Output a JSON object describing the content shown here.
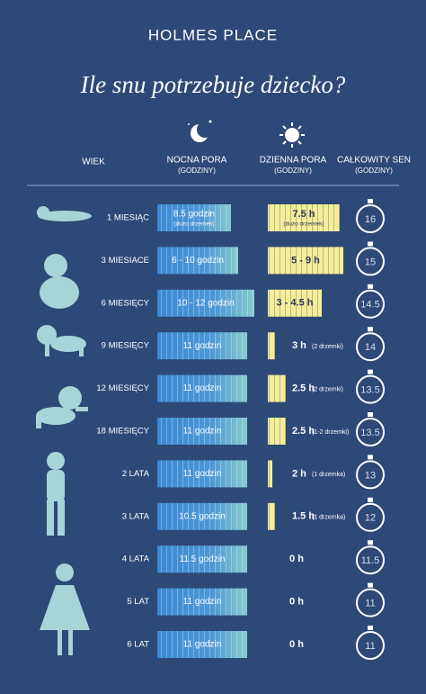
{
  "header": {
    "brand": "HOLMES PLACE",
    "title": "Ile snu potrzebuje dziecko?"
  },
  "columns": {
    "age": "WIEK",
    "night": "NOCNA PORA",
    "night_unit": "(GODZINY)",
    "day": "DZIENNA PORA",
    "day_unit": "(GODZINY)",
    "total": "CAŁKOWITY SEN",
    "total_unit": "(GODZINY)"
  },
  "rows": [
    {
      "age": "1 MIESIĄC",
      "night": "8.5 godzin",
      "night_note": "(dużo drzemek)",
      "day": "7.5 h",
      "day_note": "(dużo drzemek)",
      "total": "16"
    },
    {
      "age": "3 MIESIACE",
      "night": "6 - 10 godzin",
      "day": "5 - 9 h",
      "total": "15"
    },
    {
      "age": "6 MIESIĘCY",
      "night": "10 - 12 godzin",
      "day": "3 - 4.5 h",
      "total": "14.5"
    },
    {
      "age": "9 MIESIĘCY",
      "night": "11 godzin",
      "day": "3 h",
      "day_note": "(2 drzemki)",
      "total": "14"
    },
    {
      "age": "12 MIESIĘCY",
      "night": "11 godzin",
      "day": "2.5 h",
      "day_note": "(2 drzemki)",
      "total": "13.5"
    },
    {
      "age": "18 MIESIĘCY",
      "night": "11 godzin",
      "day": "2.5 h",
      "day_note": "(1-2 drzemki)",
      "total": "13.5"
    },
    {
      "age": "2 LATA",
      "night": "11 godzin",
      "day": "2 h",
      "day_note": "(1 drzemka)",
      "total": "13"
    },
    {
      "age": "3 LATA",
      "night": "10.5 godzin",
      "day": "1.5 h",
      "day_note": "(1 drzemka)",
      "total": "12"
    },
    {
      "age": "4 LATA",
      "night": "11.5 godzin",
      "day": "0 h",
      "total": "11.5"
    },
    {
      "age": "5 LAT",
      "night": "11 godzin",
      "day": "0 h",
      "total": "11"
    },
    {
      "age": "6 LAT",
      "night": "11 godzin",
      "day": "0 h",
      "total": "11"
    }
  ]
}
